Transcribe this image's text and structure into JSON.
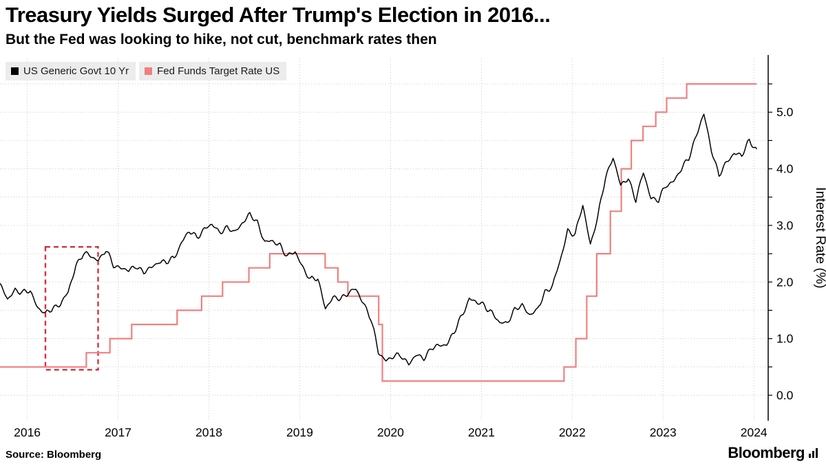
{
  "footer": {
    "source": "Source: Bloomberg",
    "brand": "Bloomberg"
  },
  "chart_data": {
    "type": "line",
    "title": "Treasury Yields Surged After Trump's Election in 2016...",
    "subtitle": "But the Fed was looking to hike, not cut, benchmark rates then",
    "xlabel": "",
    "ylabel": "Interest Rate (%)",
    "legend_position": "top-left",
    "grid": true,
    "x_domain": [
      2016.0,
      2024.45
    ],
    "y_domain": [
      -0.45,
      5.95
    ],
    "x_ticks": [
      2016,
      2017,
      2018,
      2019,
      2020,
      2021,
      2022,
      2023,
      2024
    ],
    "x_label_offset": 0.3,
    "y_ticks": [
      0.0,
      1.0,
      2.0,
      3.0,
      4.0,
      5.0
    ],
    "y_grid": [
      0.0,
      5.5,
      0.5
    ],
    "series": [
      {
        "name": "US Generic Govt 10 Yr",
        "color": "#000000",
        "style": "line",
        "x_start": 2016.0,
        "x_step": 0.0833333,
        "values": [
          1.95,
          1.68,
          1.88,
          1.8,
          1.84,
          1.56,
          1.42,
          1.55,
          1.62,
          1.8,
          2.3,
          2.5,
          2.45,
          2.4,
          2.55,
          2.3,
          2.26,
          2.18,
          2.3,
          2.17,
          2.24,
          2.38,
          2.34,
          2.42,
          2.72,
          2.88,
          2.8,
          2.94,
          3.0,
          2.9,
          2.95,
          2.87,
          3.06,
          3.18,
          3.05,
          2.72,
          2.7,
          2.66,
          2.45,
          2.52,
          2.28,
          2.03,
          2.06,
          1.55,
          1.7,
          1.72,
          1.81,
          1.86,
          1.65,
          1.35,
          0.75,
          0.63,
          0.67,
          0.71,
          0.56,
          0.69,
          0.67,
          0.83,
          0.86,
          0.92,
          1.1,
          1.4,
          1.72,
          1.62,
          1.6,
          1.46,
          1.26,
          1.3,
          1.5,
          1.58,
          1.44,
          1.49,
          1.82,
          1.95,
          2.35,
          2.92,
          2.84,
          3.35,
          2.68,
          3.15,
          3.85,
          4.22,
          3.68,
          3.85,
          3.45,
          3.92,
          3.5,
          3.44,
          3.7,
          3.8,
          3.97,
          4.2,
          4.6,
          4.95,
          4.35,
          3.88,
          4.1,
          4.3,
          4.22,
          4.5,
          4.35
        ]
      },
      {
        "name": "Fed Funds Target Rate US",
        "color": "#f08080",
        "style": "step",
        "points": [
          [
            2016.0,
            0.5
          ],
          [
            2016.95,
            0.75
          ],
          [
            2017.21,
            1.0
          ],
          [
            2017.45,
            1.25
          ],
          [
            2017.95,
            1.5
          ],
          [
            2018.22,
            1.75
          ],
          [
            2018.45,
            2.0
          ],
          [
            2018.74,
            2.25
          ],
          [
            2018.97,
            2.5
          ],
          [
            2019.58,
            2.25
          ],
          [
            2019.72,
            2.0
          ],
          [
            2019.83,
            1.75
          ],
          [
            2020.17,
            1.25
          ],
          [
            2020.21,
            0.25
          ],
          [
            2022.21,
            0.5
          ],
          [
            2022.34,
            1.0
          ],
          [
            2022.46,
            1.75
          ],
          [
            2022.57,
            2.5
          ],
          [
            2022.72,
            3.25
          ],
          [
            2022.84,
            4.0
          ],
          [
            2022.95,
            4.5
          ],
          [
            2023.08,
            4.75
          ],
          [
            2023.22,
            5.0
          ],
          [
            2023.34,
            5.25
          ],
          [
            2023.56,
            5.5
          ],
          [
            2024.33,
            5.5
          ]
        ]
      }
    ],
    "annotation_box": {
      "label": "2016 election highlight",
      "x0": 2016.5,
      "x1": 2017.08,
      "y0": 0.45,
      "y1": 2.62,
      "color": "#d7303f",
      "style": "dashed"
    }
  }
}
